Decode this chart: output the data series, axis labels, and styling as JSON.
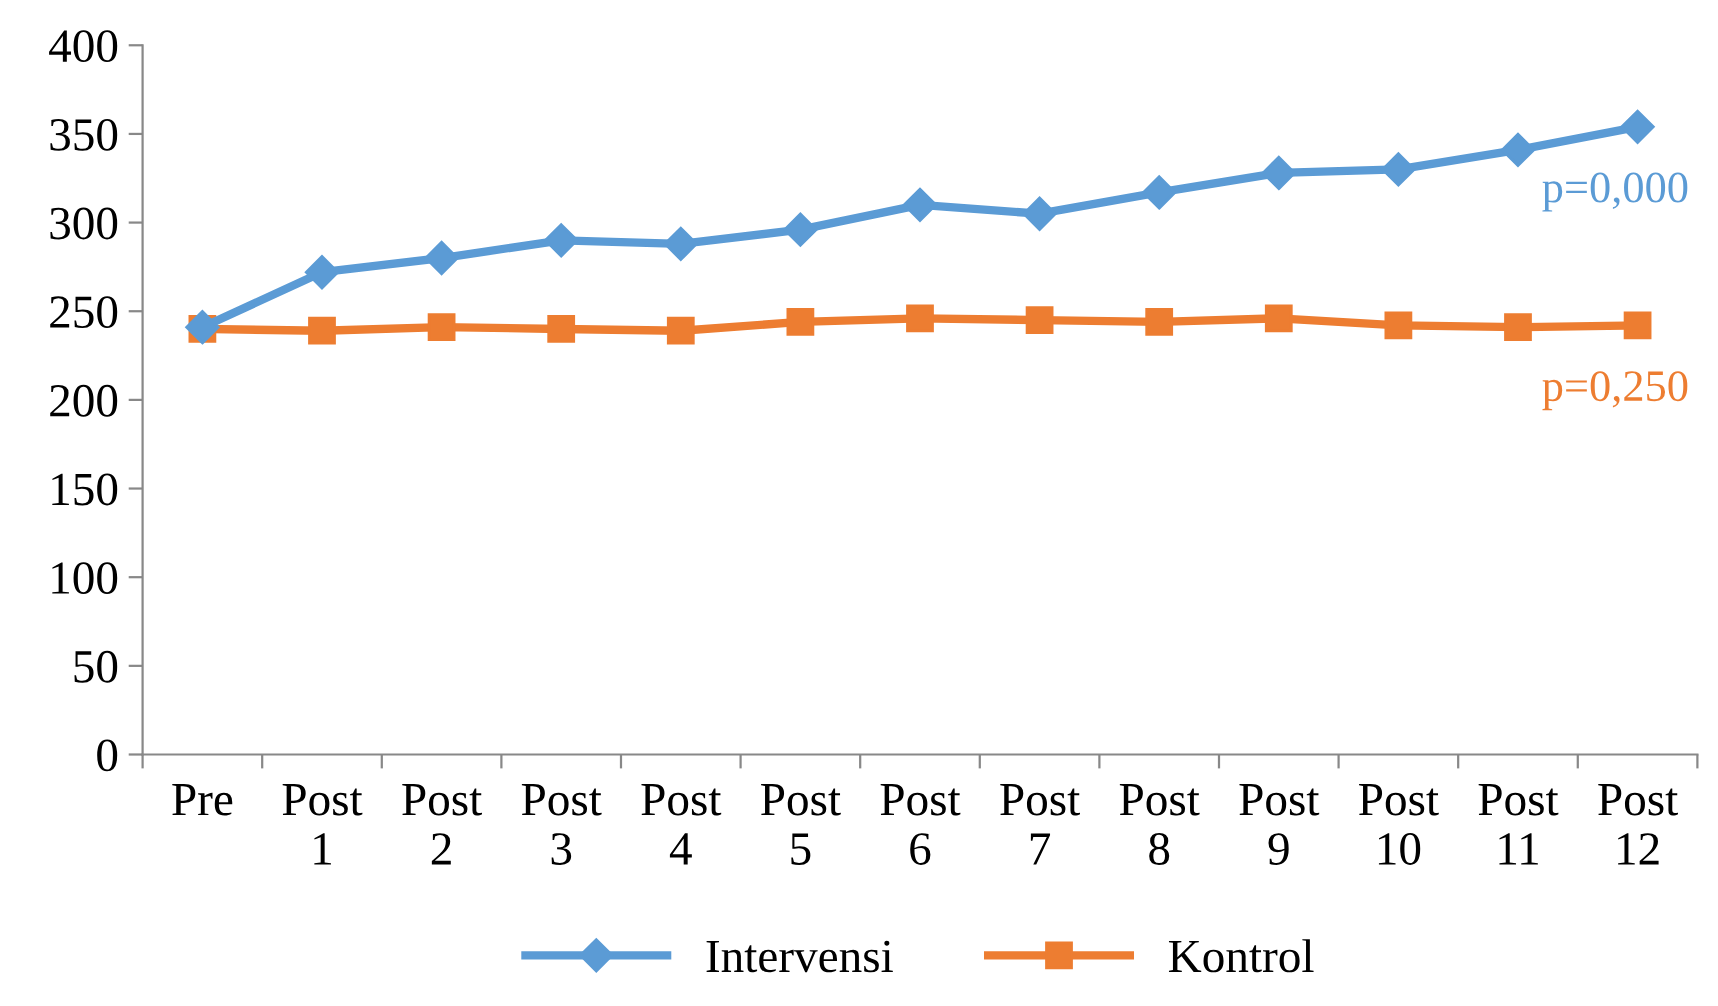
{
  "chart_data": {
    "type": "line",
    "categories": [
      "Pre",
      "Post\n1",
      "Post\n2",
      "Post\n3",
      "Post\n4",
      "Post\n5",
      "Post\n6",
      "Post\n7",
      "Post\n8",
      "Post\n9",
      "Post\n10",
      "Post\n11",
      "Post\n12"
    ],
    "series": [
      {
        "name": "Intervensi",
        "color": "#5b9bd5",
        "marker": "diamond",
        "values": [
          241,
          272,
          280,
          290,
          288,
          296,
          310,
          305,
          317,
          328,
          330,
          341,
          354
        ]
      },
      {
        "name": "Kontrol",
        "color": "#ed7d31",
        "marker": "square",
        "values": [
          240,
          239,
          241,
          240,
          239,
          244,
          246,
          245,
          244,
          246,
          242,
          241,
          242
        ]
      }
    ],
    "ylim": [
      0,
      400
    ],
    "yticks": [
      0,
      50,
      100,
      150,
      200,
      250,
      300,
      350,
      400
    ],
    "grid": false,
    "legend": "bottom",
    "line_style": "solid",
    "annotations": [
      {
        "text": "p=0,000",
        "x": "Post\n12",
        "y": 354
      },
      {
        "text": "p=0,250",
        "x": "Post\n12",
        "y": 242
      }
    ]
  }
}
